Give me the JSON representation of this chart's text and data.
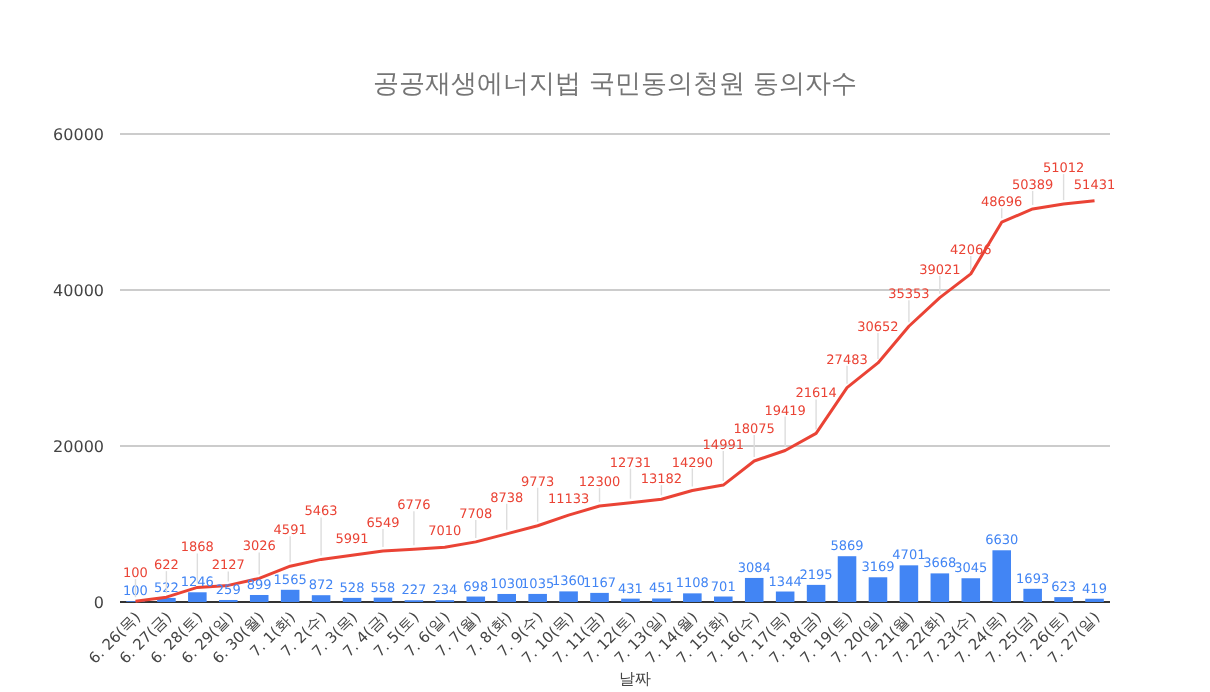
{
  "chart_data": {
    "type": "bar",
    "title": "공공재생에너지법 국민동의청원 동의자수",
    "xlabel": "날짜",
    "categories": [
      "6. 26(목)",
      "6. 27(금)",
      "6. 28(토)",
      "6. 29(일)",
      "6. 30(월)",
      "7. 1(화)",
      "7. 2(수)",
      "7. 3(목)",
      "7. 4(금)",
      "7. 5(토)",
      "7. 6(일)",
      "7. 7(월)",
      "7. 8(화)",
      "7. 9(수)",
      "7. 10(목)",
      "7. 11(금)",
      "7. 12(토)",
      "7. 13(일)",
      "7. 14(월)",
      "7. 15(화)",
      "7. 16(수)",
      "7. 17(목)",
      "7. 18(금)",
      "7. 19(토)",
      "7. 20(일)",
      "7. 21(월)",
      "7. 22(화)",
      "7. 23(수)",
      "7. 24(목)",
      "7. 25(금)",
      "7. 26(토)",
      "7. 27(일)"
    ],
    "series": [
      {
        "color": "#4285f4",
        "values": [
          100,
          522,
          1246,
          259,
          899,
          1565,
          872,
          528,
          558,
          227,
          234,
          698,
          1030,
          1035,
          1360,
          1167,
          431,
          451,
          1108,
          701,
          3084,
          1344,
          2195,
          5869,
          3169,
          4701,
          3668,
          3045,
          6630,
          1693,
          623,
          419
        ]
      },
      {
        "type": "line",
        "color": "#ea4335",
        "values": [
          100,
          622,
          1868,
          2127,
          3026,
          4591,
          5463,
          5991,
          6549,
          6776,
          7010,
          7708,
          8738,
          9773,
          11133,
          12300,
          12731,
          13182,
          14290,
          14991,
          18075,
          19419,
          21614,
          27483,
          30652,
          35353,
          39021,
          42066,
          48696,
          50389,
          51012,
          51431
        ]
      }
    ],
    "ylim": [
      0,
      60000
    ],
    "yticks": [
      0,
      20000,
      40000,
      60000
    ],
    "grid": "y",
    "data_labels": true
  }
}
